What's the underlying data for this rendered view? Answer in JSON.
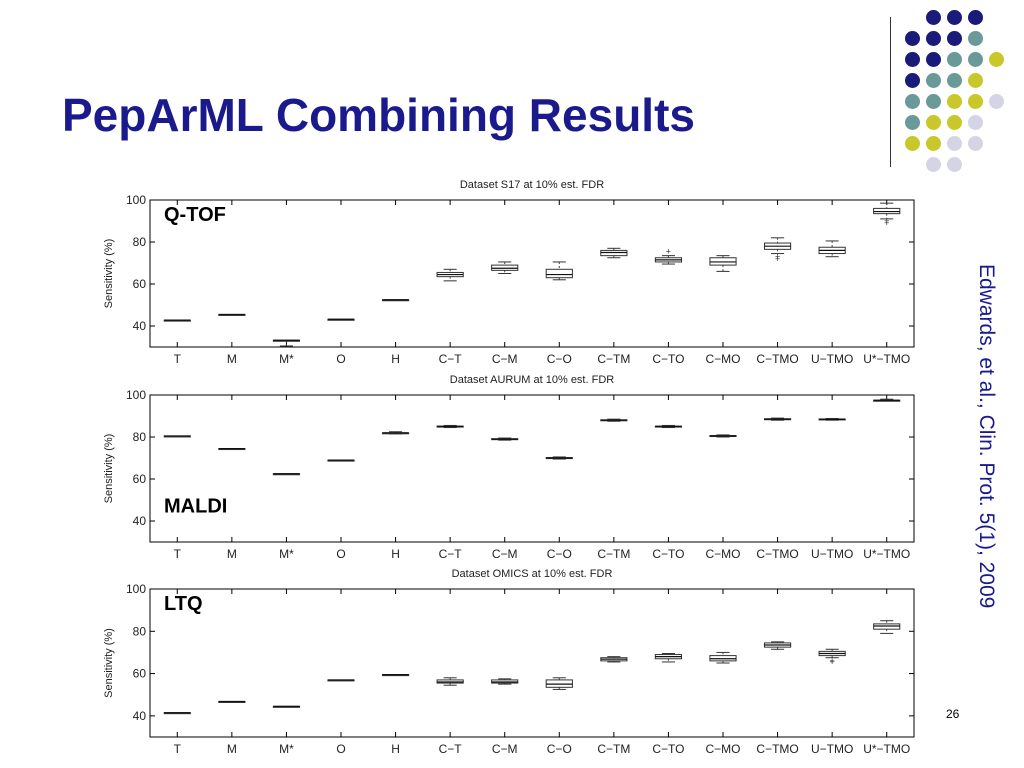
{
  "slide": {
    "title": "PepArML Combining Results",
    "citation": "Edwards, et al., Clin. Prot. 5(1), 2009",
    "page_number": "26"
  },
  "decor": {
    "dot_colors": {
      "navy": "#1a1a7a",
      "teal": "#6a9a98",
      "olive": "#c8c82a",
      "lavender": "#d4d4e4"
    },
    "dot_rows": [
      [
        "navy",
        "navy",
        "navy"
      ],
      [
        "navy",
        "navy",
        "navy",
        "teal"
      ],
      [
        "navy",
        "navy",
        "teal",
        "teal",
        "olive"
      ],
      [
        "navy",
        "teal",
        "teal",
        "olive"
      ],
      [
        "teal",
        "teal",
        "olive",
        "olive",
        "lavender"
      ],
      [
        "teal",
        "olive",
        "olive",
        "lavender"
      ],
      [
        "olive",
        "olive",
        "lavender",
        "lavender"
      ],
      [
        "lavender",
        "lavender"
      ]
    ],
    "dot_row_starts": [
      1,
      0,
      0,
      0,
      0,
      0,
      0,
      1
    ]
  },
  "chart_data": [
    {
      "type": "box",
      "title": "Dataset S17 at 10% est. FDR",
      "label": "Q-TOF",
      "ylabel": "Sensitivity (%)",
      "ylim": [
        30,
        100
      ],
      "yticks": [
        40,
        60,
        80,
        100
      ],
      "categories": [
        "T",
        "M",
        "M*",
        "O",
        "H",
        "C−T",
        "C−M",
        "C−O",
        "C−TM",
        "C−TO",
        "C−MO",
        "C−TMO",
        "U−TMO",
        "U*−TMO"
      ],
      "boxes": [
        {
          "min": 42.8,
          "q1": 42.8,
          "median": 42.8,
          "q3": 42.8,
          "max": 42.8
        },
        {
          "min": 45.5,
          "q1": 45.5,
          "median": 45.5,
          "q3": 45.5,
          "max": 45.5
        },
        {
          "min": 30.5,
          "q1": 33.2,
          "median": 33.2,
          "q3": 33.2,
          "max": 33.2
        },
        {
          "min": 43.2,
          "q1": 43.2,
          "median": 43.2,
          "q3": 43.2,
          "max": 43.2
        },
        {
          "min": 52.5,
          "q1": 52.5,
          "median": 52.5,
          "q3": 52.5,
          "max": 52.5
        },
        {
          "min": 61.5,
          "q1": 63.5,
          "median": 64.5,
          "q3": 65.5,
          "max": 67
        },
        {
          "min": 65,
          "q1": 66.5,
          "median": 67.5,
          "q3": 69,
          "max": 70.5
        },
        {
          "min": 62,
          "q1": 63,
          "median": 64.5,
          "q3": 67,
          "max": 70.5
        },
        {
          "min": 72.5,
          "q1": 73.5,
          "median": 75,
          "q3": 76,
          "max": 77
        },
        {
          "min": 69.5,
          "q1": 70.5,
          "median": 71.5,
          "q3": 72.5,
          "max": 73.5,
          "outliers": [
            75.5
          ]
        },
        {
          "min": 66,
          "q1": 69,
          "median": 70.5,
          "q3": 72.5,
          "max": 73.5
        },
        {
          "min": 74.5,
          "q1": 76.5,
          "median": 78,
          "q3": 79.5,
          "max": 82,
          "outliers": [
            73,
            72
          ]
        },
        {
          "min": 73,
          "q1": 74.5,
          "median": 76,
          "q3": 77.5,
          "max": 80.5
        },
        {
          "min": 91,
          "q1": 93.5,
          "median": 94.5,
          "q3": 96,
          "max": 98.5,
          "outliers": [
            89,
            90
          ]
        }
      ]
    },
    {
      "type": "box",
      "title": "Dataset AURUM at 10% est. FDR",
      "label": "MALDI",
      "ylabel": "Sensitivity (%)",
      "ylim": [
        30,
        100
      ],
      "yticks": [
        40,
        60,
        80,
        100
      ],
      "categories": [
        "T",
        "M",
        "M*",
        "O",
        "H",
        "C−T",
        "C−M",
        "C−O",
        "C−TM",
        "C−TO",
        "C−MO",
        "C−TMO",
        "U−TMO",
        "U*−TMO"
      ],
      "boxes": [
        {
          "min": 80.5,
          "q1": 80.5,
          "median": 80.5,
          "q3": 80.5,
          "max": 80.5
        },
        {
          "min": 74.5,
          "q1": 74.5,
          "median": 74.5,
          "q3": 74.5,
          "max": 74.5
        },
        {
          "min": 62.5,
          "q1": 62.5,
          "median": 62.5,
          "q3": 62.5,
          "max": 62.5
        },
        {
          "min": 69,
          "q1": 69,
          "median": 69,
          "q3": 69,
          "max": 69
        },
        {
          "min": 81.5,
          "q1": 82,
          "median": 82,
          "q3": 82,
          "max": 82.5
        },
        {
          "min": 84.5,
          "q1": 84.8,
          "median": 85,
          "q3": 85.2,
          "max": 85.5
        },
        {
          "min": 78.5,
          "q1": 78.8,
          "median": 79,
          "q3": 79.2,
          "max": 79.5
        },
        {
          "min": 69.5,
          "q1": 69.8,
          "median": 70,
          "q3": 70.2,
          "max": 70.5
        },
        {
          "min": 87.5,
          "q1": 87.8,
          "median": 88,
          "q3": 88.2,
          "max": 88.5
        },
        {
          "min": 84.5,
          "q1": 84.8,
          "median": 85,
          "q3": 85.2,
          "max": 85.5
        },
        {
          "min": 80,
          "q1": 80.3,
          "median": 80.5,
          "q3": 80.7,
          "max": 81
        },
        {
          "min": 88,
          "q1": 88.3,
          "median": 88.5,
          "q3": 88.7,
          "max": 89
        },
        {
          "min": 88,
          "q1": 88.2,
          "median": 88.4,
          "q3": 88.6,
          "max": 88.8
        },
        {
          "min": 97.5,
          "q1": 97.5,
          "median": 97.5,
          "q3": 97.5,
          "max": 98
        }
      ]
    },
    {
      "type": "box",
      "title": "Dataset OMICS at 10% est. FDR",
      "label": "LTQ",
      "ylabel": "Sensitivity (%)",
      "ylim": [
        30,
        100
      ],
      "yticks": [
        40,
        60,
        80,
        100
      ],
      "categories": [
        "T",
        "M",
        "M*",
        "O",
        "H",
        "C−T",
        "C−M",
        "C−O",
        "C−TM",
        "C−TO",
        "C−MO",
        "C−TMO",
        "U−TMO",
        "U*−TMO"
      ],
      "boxes": [
        {
          "min": 41.5,
          "q1": 41.5,
          "median": 41.5,
          "q3": 41.5,
          "max": 41.5
        },
        {
          "min": 46.8,
          "q1": 46.8,
          "median": 46.8,
          "q3": 46.8,
          "max": 46.8
        },
        {
          "min": 44.5,
          "q1": 44.5,
          "median": 44.5,
          "q3": 44.5,
          "max": 44.5
        },
        {
          "min": 57,
          "q1": 57,
          "median": 57,
          "q3": 57,
          "max": 57
        },
        {
          "min": 59.5,
          "q1": 59.5,
          "median": 59.5,
          "q3": 59.5,
          "max": 59.5
        },
        {
          "min": 54.5,
          "q1": 55.5,
          "median": 56,
          "q3": 57,
          "max": 58
        },
        {
          "min": 55,
          "q1": 55.5,
          "median": 56,
          "q3": 57,
          "max": 57.5
        },
        {
          "min": 52.5,
          "q1": 53.5,
          "median": 55,
          "q3": 57,
          "max": 58
        },
        {
          "min": 65.5,
          "q1": 66,
          "median": 66.8,
          "q3": 67.5,
          "max": 68
        },
        {
          "min": 65.5,
          "q1": 67,
          "median": 68,
          "q3": 69,
          "max": 69.5
        },
        {
          "min": 65,
          "q1": 66,
          "median": 67,
          "q3": 68.5,
          "max": 70
        },
        {
          "min": 71.5,
          "q1": 72.5,
          "median": 73.5,
          "q3": 74.5,
          "max": 75
        },
        {
          "min": 67.5,
          "q1": 68.5,
          "median": 69.5,
          "q3": 70.5,
          "max": 71.5,
          "outliers": [
            66,
            65.5
          ]
        },
        {
          "min": 79,
          "q1": 81,
          "median": 82.5,
          "q3": 83.5,
          "max": 85
        }
      ]
    }
  ]
}
